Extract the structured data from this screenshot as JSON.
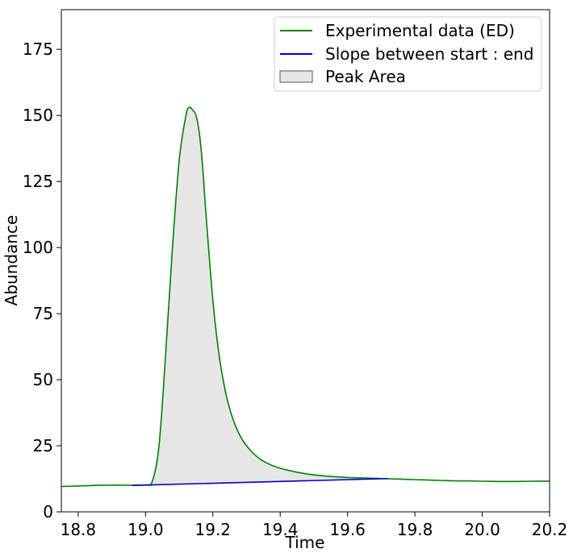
{
  "chart_data": {
    "type": "line",
    "xlabel": "Time",
    "ylabel": "Abundance",
    "xlim": [
      18.75,
      20.2
    ],
    "ylim": [
      0,
      190
    ],
    "xticks": [
      18.8,
      19.0,
      19.2,
      19.4,
      19.6,
      19.8,
      20.0,
      20.2
    ],
    "xtick_labels": [
      "18.8",
      "19.0",
      "19.2",
      "19.4",
      "19.6",
      "19.8",
      "20.0",
      "20.2"
    ],
    "yticks": [
      0,
      25,
      50,
      75,
      100,
      125,
      150,
      175
    ],
    "ytick_labels": [
      "0",
      "25",
      "50",
      "75",
      "100",
      "125",
      "150",
      "175"
    ],
    "grid": false,
    "legend_position": "top-right",
    "series": [
      {
        "name": "Experimental data (ED)",
        "color": "#008000",
        "x": [
          18.75,
          18.8,
          18.85,
          18.9,
          18.95,
          19.0,
          19.02,
          19.04,
          19.06,
          19.08,
          19.1,
          19.12,
          19.13,
          19.14,
          19.15,
          19.16,
          19.17,
          19.18,
          19.2,
          19.22,
          19.24,
          19.26,
          19.28,
          19.3,
          19.33,
          19.36,
          19.4,
          19.45,
          19.5,
          19.55,
          19.6,
          19.65,
          19.7,
          19.75,
          19.8,
          19.85,
          19.9,
          19.95,
          20.0,
          20.05,
          20.1,
          20.15,
          20.2
        ],
        "y": [
          9.6,
          9.8,
          10.0,
          10.1,
          10.1,
          10.2,
          11.5,
          25,
          60,
          100,
          133,
          150,
          153,
          152,
          150,
          143,
          130,
          112,
          80,
          58,
          44,
          35,
          29,
          25,
          21,
          18.5,
          16.5,
          15.0,
          14.0,
          13.4,
          13.0,
          12.8,
          12.6,
          12.4,
          12.2,
          12.0,
          11.8,
          11.7,
          11.6,
          11.5,
          11.5,
          11.6,
          11.6
        ]
      },
      {
        "name": "Slope between start : end",
        "color": "#0000cc",
        "x": [
          18.96,
          19.72
        ],
        "y": [
          10.0,
          12.6
        ]
      }
    ],
    "area": {
      "name": "Peak Area",
      "fill": "#e6e6e6",
      "edge": "#555555",
      "x_start": 18.96,
      "x_end": 19.72
    }
  }
}
